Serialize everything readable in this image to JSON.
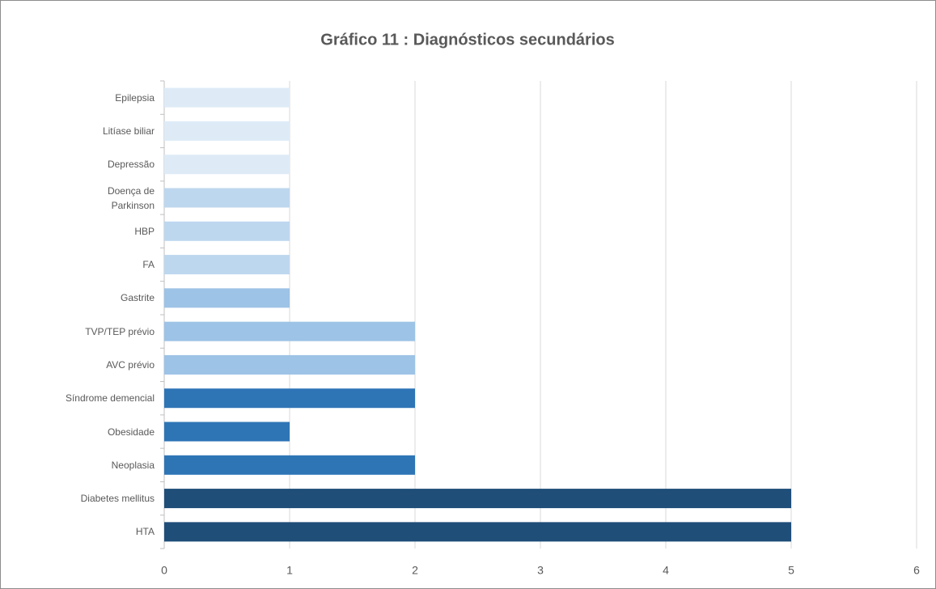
{
  "chart_data": {
    "type": "hbar",
    "title": "Gráfico 11 : Diagnósticos secundários",
    "categories": [
      "Epilepsia",
      "Litíase biliar",
      "Depressão",
      "Doença de Parkinson",
      "HBP",
      "FA",
      "Gastrite",
      "TVP/TEP prévio",
      "AVC prévio",
      "Síndrome demencial",
      "Obesidade",
      "Neoplasia",
      "Diabetes mellitus",
      "HTA"
    ],
    "values": [
      1,
      1,
      1,
      1,
      1,
      1,
      1,
      2,
      2,
      2,
      1,
      2,
      5,
      5
    ],
    "colors": [
      "#deebf7",
      "#deebf7",
      "#deebf7",
      "#bdd7ee",
      "#bdd7ee",
      "#bdd7ee",
      "#9dc3e6",
      "#9dc3e6",
      "#9dc3e6",
      "#2e75b6",
      "#2e75b6",
      "#2e75b6",
      "#1f4e79",
      "#1f4e79"
    ],
    "xlim": [
      0,
      6
    ],
    "xticks": [
      0,
      1,
      2,
      3,
      4,
      5,
      6
    ],
    "grid": true
  }
}
